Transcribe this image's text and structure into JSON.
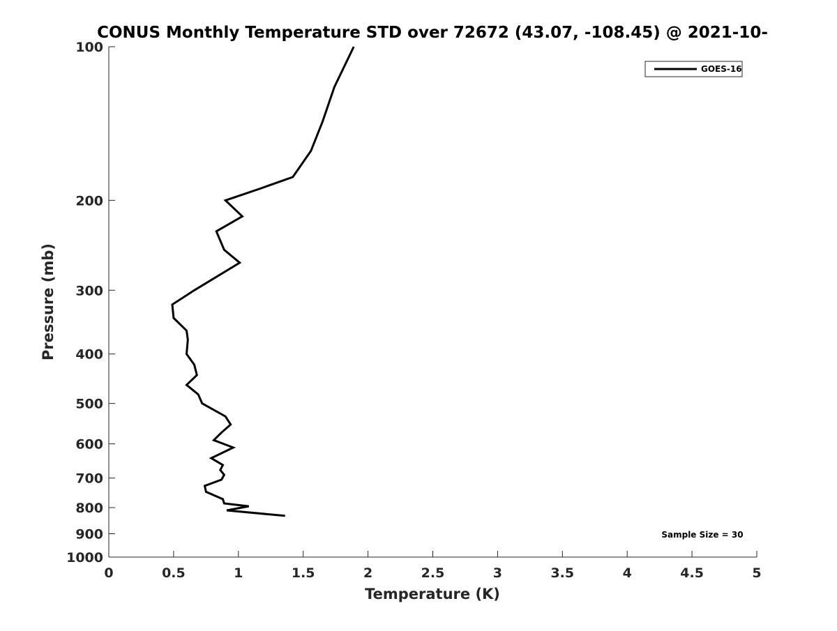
{
  "chart_data": {
    "type": "line",
    "title": "CONUS Monthly Temperature STD over 72672 (43.07, -108.45) @ 2021-10-",
    "xlabel": "Temperature (K)",
    "ylabel": "Pressure (mb)",
    "xlim": [
      0,
      5
    ],
    "ylim": [
      1000,
      100
    ],
    "y_scale": "log",
    "y_reversed": true,
    "grid": false,
    "legend_position": "top-right",
    "x_ticks": [
      0,
      0.5,
      1,
      1.5,
      2,
      2.5,
      3,
      3.5,
      4,
      4.5,
      5
    ],
    "x_tick_labels": [
      "0",
      "0.5",
      "1",
      "1.5",
      "2",
      "2.5",
      "3",
      "3.5",
      "4",
      "4.5",
      "5"
    ],
    "y_ticks": [
      100,
      200,
      300,
      400,
      500,
      600,
      700,
      800,
      900,
      1000
    ],
    "y_tick_labels": [
      "100",
      "200",
      "300",
      "400",
      "500",
      "600",
      "700",
      "800",
      "900",
      "1000"
    ],
    "series": [
      {
        "name": "GOES-16",
        "color": "#000000",
        "x": [
          1.89,
          1.74,
          1.65,
          1.56,
          1.42,
          1.16,
          0.9,
          1.03,
          0.83,
          0.89,
          1.01,
          0.66,
          0.49,
          0.5,
          0.6,
          0.61,
          0.6,
          0.66,
          0.68,
          0.6,
          0.69,
          0.72,
          0.9,
          0.94,
          0.87,
          0.81,
          0.96,
          0.79,
          0.88,
          0.86,
          0.89,
          0.87,
          0.74,
          0.75,
          0.88,
          0.89,
          1.08,
          0.91,
          1.36
        ],
        "y": [
          100,
          120,
          140,
          160,
          180,
          190,
          200,
          215,
          230,
          250,
          265,
          300,
          320,
          340,
          360,
          375,
          400,
          420,
          440,
          460,
          480,
          500,
          530,
          550,
          570,
          590,
          610,
          640,
          660,
          675,
          690,
          705,
          725,
          745,
          770,
          785,
          795,
          810,
          830
        ]
      }
    ],
    "annotations": [
      "Sample Size = 30"
    ]
  }
}
